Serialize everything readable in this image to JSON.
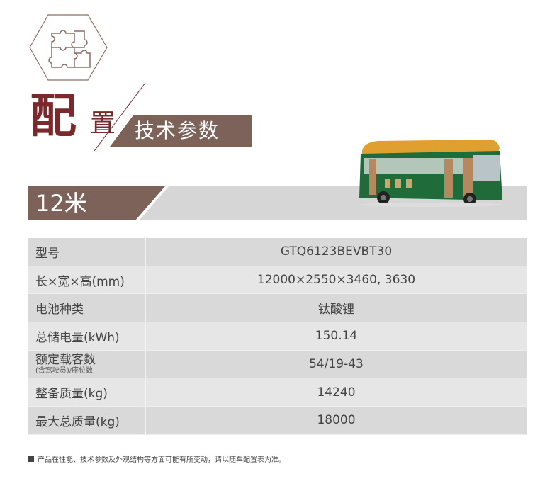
{
  "title": {
    "main_char1": "配",
    "main_char2": "置",
    "tag": "技术参数"
  },
  "section": {
    "label": "12米"
  },
  "specs": [
    {
      "key": "型号",
      "value": "GTQ6123BEVBT30"
    },
    {
      "key": "长×宽×高(mm)",
      "value": "12000×2550×3460, 3630"
    },
    {
      "key": "电池种类",
      "value": "钛酸锂"
    },
    {
      "key": "总储电量(kWh)",
      "value": "150.14"
    },
    {
      "key": "额定载客数",
      "sub": "(含驾驶员)/座位数",
      "value": "54/19-43"
    },
    {
      "key": "整备质量(kg)",
      "value": "14240"
    },
    {
      "key": "最大总质量(kg)",
      "value": "18000"
    }
  ],
  "note": "产品在性能、技术参数及外观结构等方面可能有所变动，请以随车配置表为准。",
  "colors": {
    "brand_brown": "#7d6259",
    "title_red": "#7a2a2c",
    "row_dark": "#d9d9d9",
    "row_light": "#e6e6e6",
    "bus_green": "#1f6b3a",
    "bus_roof": "#e0a030"
  },
  "icons": [
    "puzzle-hexagon-icon"
  ]
}
